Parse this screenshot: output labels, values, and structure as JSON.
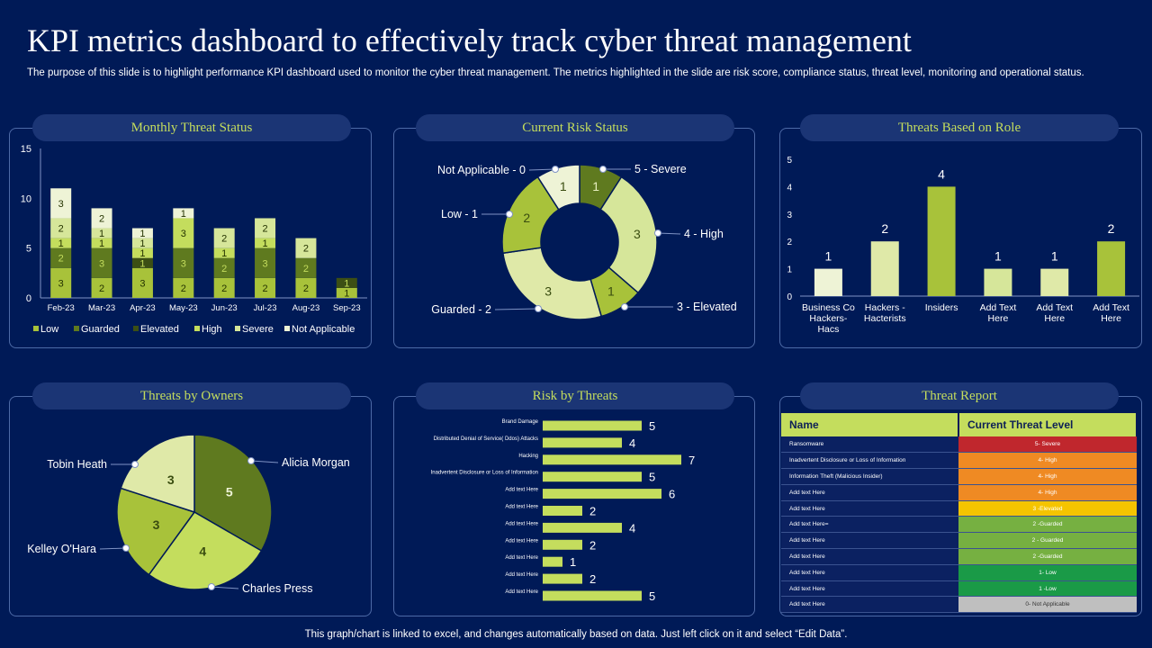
{
  "title": "KPI metrics dashboard to effectively track cyber threat management",
  "subtitle": "The purpose of this slide is to highlight performance KPI dashboard used to monitor the cyber threat management. The metrics highlighted in the slide are risk score, compliance status, threat level, monitoring and operational status.",
  "footer": "This graph/chart is linked to excel, and changes automatically based on data. Just left click on it and select “Edit Data”.",
  "colors": {
    "background": "#001a57",
    "accent": "#c4dd5d",
    "low": "#a8c23a",
    "guarded": "#5f7a1f",
    "elevated": "#3c4f14",
    "high": "#c4dd5d",
    "severe": "#d6e69a",
    "not_applicable": "#eef3d6"
  },
  "panels": {
    "monthly": "Monthly  Threat  Status",
    "risk": "Current  Risk  Status",
    "role": "Threats  Based  on  Role",
    "owners": "Threats  by  Owners",
    "riskThreats": "Risk  by  Threats",
    "report": "Threat  Report"
  },
  "chart_data": [
    {
      "id": "monthly",
      "type": "bar",
      "stacked": true,
      "title": "Monthly Threat Status",
      "categories": [
        "Feb-23",
        "Mar-23",
        "Apr-23",
        "May-23",
        "Jun-23",
        "Jul-23",
        "Aug-23",
        "Sep-23"
      ],
      "series": [
        {
          "name": "Low",
          "values": [
            3,
            2,
            3,
            2,
            2,
            2,
            2,
            1
          ]
        },
        {
          "name": "Guarded",
          "values": [
            2,
            3,
            0,
            3,
            2,
            3,
            2,
            0
          ]
        },
        {
          "name": "Elevated",
          "values": [
            0,
            0,
            1,
            0,
            0,
            0,
            0,
            1
          ]
        },
        {
          "name": "High",
          "values": [
            1,
            1,
            1,
            3,
            1,
            1,
            0,
            0
          ]
        },
        {
          "name": "Severe",
          "values": [
            2,
            1,
            1,
            0,
            2,
            2,
            2,
            0
          ]
        },
        {
          "name": "Not Applicable",
          "values": [
            3,
            2,
            1,
            1,
            0,
            0,
            0,
            0
          ]
        }
      ],
      "yticks": [
        0,
        5,
        10,
        15
      ],
      "ylim": [
        0,
        15
      ],
      "legend": "bottom"
    },
    {
      "id": "risk",
      "type": "pie",
      "donut": true,
      "title": "Current Risk Status",
      "slices": [
        {
          "name": "Severe",
          "value": 1,
          "label": "5 - Severe"
        },
        {
          "name": "High",
          "value": 3,
          "label": "4 - High"
        },
        {
          "name": "Elevated",
          "value": 1,
          "label": "3 - Elevated"
        },
        {
          "name": "Guarded",
          "value": 3,
          "label": "Guarded - 2"
        },
        {
          "name": "Low",
          "value": 2,
          "label": "Low - 1"
        },
        {
          "name": "Not Applicable",
          "value": 1,
          "label": "Not Applicable - 0"
        }
      ]
    },
    {
      "id": "role",
      "type": "bar",
      "title": "Threats Based on Role",
      "categories": [
        "Business Co Hackers- Hacs",
        "Hackers - Hacterists",
        "Insiders",
        "Add Text Here",
        "Add Text Here",
        "Add Text Here"
      ],
      "values": [
        1,
        2,
        4,
        1,
        1,
        2
      ],
      "yticks": [
        0,
        1,
        2,
        3,
        4,
        5
      ],
      "ylim": [
        0,
        5
      ]
    },
    {
      "id": "owners",
      "type": "pie",
      "title": "Threats by Owners",
      "slices": [
        {
          "name": "Alicia Morgan",
          "value": 5
        },
        {
          "name": "Charles Press",
          "value": 4
        },
        {
          "name": "Kelley O'Hara",
          "value": 3
        },
        {
          "name": "Tobin Heath",
          "value": 3
        }
      ]
    },
    {
      "id": "riskThreats",
      "type": "bar",
      "orientation": "horizontal",
      "title": "Risk by Threats",
      "categories": [
        "Brand Damage",
        "Distributed Denial of Service( Ddos) Attacks",
        "Hacking",
        "Inadvertent Disclosure or Loss of Information",
        "Add text Here",
        "Add text Here",
        "Add text Here",
        "Add text Here",
        "Add text Here",
        "Add text Here",
        "Add text Here"
      ],
      "values": [
        5,
        4,
        7,
        5,
        6,
        2,
        4,
        2,
        1,
        2,
        5
      ],
      "xlim": [
        0,
        7
      ]
    }
  ],
  "report": {
    "headers": [
      "Name",
      "Current Threat Level"
    ],
    "rows": [
      {
        "name": "Ransomware",
        "level": "5- Severe",
        "color": "#c0272d"
      },
      {
        "name": "Inadvertent Disclosure or Loss of Information",
        "level": "4- High",
        "color": "#ef8a23"
      },
      {
        "name": "Information Theft (Malicious Insider)",
        "level": "4- High",
        "color": "#ef8a23"
      },
      {
        "name": "Add text Here",
        "level": "4- High",
        "color": "#ef8a23"
      },
      {
        "name": "Add text Here",
        "level": "3 -Elevated",
        "color": "#f5c400"
      },
      {
        "name": "Add text Here=",
        "level": "2 -Guarded",
        "color": "#76b041"
      },
      {
        "name": "Add text Here",
        "level": "2 - Guarded",
        "color": "#76b041"
      },
      {
        "name": "Add text Here",
        "level": "2 -Guarded",
        "color": "#76b041"
      },
      {
        "name": "Add text Here",
        "level": "1- Low",
        "color": "#1a9a47"
      },
      {
        "name": "Add text Here",
        "level": "1 -Low",
        "color": "#1a9a47"
      },
      {
        "name": "Add text Here",
        "level": "0- Not   Applicable",
        "color": "#bfbfbf"
      }
    ]
  }
}
